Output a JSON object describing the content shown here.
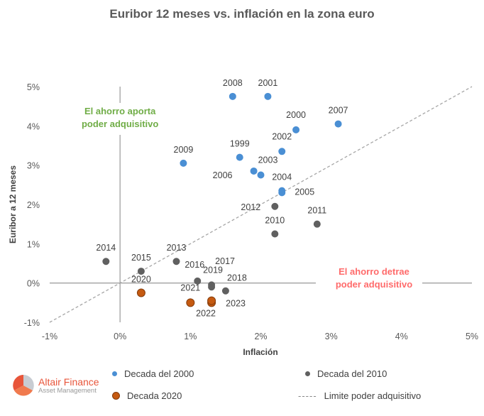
{
  "chart_data": {
    "type": "scatter",
    "title": "Euribor 12 meses vs. inflación en la zona euro",
    "xlabel": "Inflación",
    "ylabel": "Euribor a 12 meses",
    "xlim": [
      -1,
      5
    ],
    "ylim": [
      -1,
      5
    ],
    "xticks": [
      "-1%",
      "0%",
      "1%",
      "2%",
      "3%",
      "4%",
      "5%"
    ],
    "yticks": [
      "-1%",
      "0%",
      "1%",
      "2%",
      "3%",
      "4%",
      "5%"
    ],
    "grid": false,
    "legend_placement": "bottom",
    "series": [
      {
        "name": "Decada del 2000",
        "color": "#4a8fd4",
        "points": [
          {
            "label": "1999",
            "x": 1.7,
            "y": 3.2
          },
          {
            "label": "2000",
            "x": 2.5,
            "y": 3.9
          },
          {
            "label": "2001",
            "x": 2.1,
            "y": 4.75
          },
          {
            "label": "2002",
            "x": 2.3,
            "y": 3.35
          },
          {
            "label": "2003",
            "x": 2.0,
            "y": 2.75
          },
          {
            "label": "2004",
            "x": 2.3,
            "y": 2.35
          },
          {
            "label": "2005",
            "x": 2.3,
            "y": 2.3
          },
          {
            "label": "2006",
            "x": 1.9,
            "y": 2.85
          },
          {
            "label": "2007",
            "x": 3.1,
            "y": 4.05
          },
          {
            "label": "2008",
            "x": 1.6,
            "y": 4.75
          },
          {
            "label": "2009",
            "x": 0.9,
            "y": 3.05
          }
        ]
      },
      {
        "name": "Decada del 2010",
        "color": "#606060",
        "points": [
          {
            "label": "2010",
            "x": 2.2,
            "y": 1.25
          },
          {
            "label": "2011",
            "x": 2.8,
            "y": 1.5
          },
          {
            "label": "2012",
            "x": 2.2,
            "y": 1.95
          },
          {
            "label": "2013",
            "x": 0.8,
            "y": 0.55
          },
          {
            "label": "2014",
            "x": -0.2,
            "y": 0.55
          },
          {
            "label": "2015",
            "x": 0.3,
            "y": 0.3
          },
          {
            "label": "2016",
            "x": 1.1,
            "y": 0.05
          },
          {
            "label": "2017",
            "x": 1.3,
            "y": -0.1
          },
          {
            "label": "2018",
            "x": 1.5,
            "y": -0.2
          },
          {
            "label": "2019",
            "x": 1.3,
            "y": -0.05
          }
        ]
      },
      {
        "name": "Decada 2020",
        "color": "#c55a11",
        "points": [
          {
            "label": "2020",
            "x": 0.3,
            "y": -0.25
          },
          {
            "label": "2021",
            "x": 1.0,
            "y": -0.5
          },
          {
            "label": "2022",
            "x": 1.3,
            "y": -0.5
          },
          {
            "label": "2023",
            "x": 1.3,
            "y": -0.45
          }
        ]
      }
    ],
    "reference_line": {
      "name": "Limite poder adquisitivo",
      "from": [
        -1,
        -1
      ],
      "to": [
        5,
        5
      ],
      "color": "#a6a6a6",
      "style": "dashed"
    },
    "annotations": [
      {
        "text": [
          "El ahorro aporta",
          "poder adquisitivo"
        ],
        "color": "#70ad47"
      },
      {
        "text": [
          "El ahorro detrae",
          "poder adquisitivo"
        ],
        "color": "#ff6b6b"
      }
    ]
  },
  "logo": {
    "name": "Altair Finance",
    "subtitle": "Asset Management"
  }
}
